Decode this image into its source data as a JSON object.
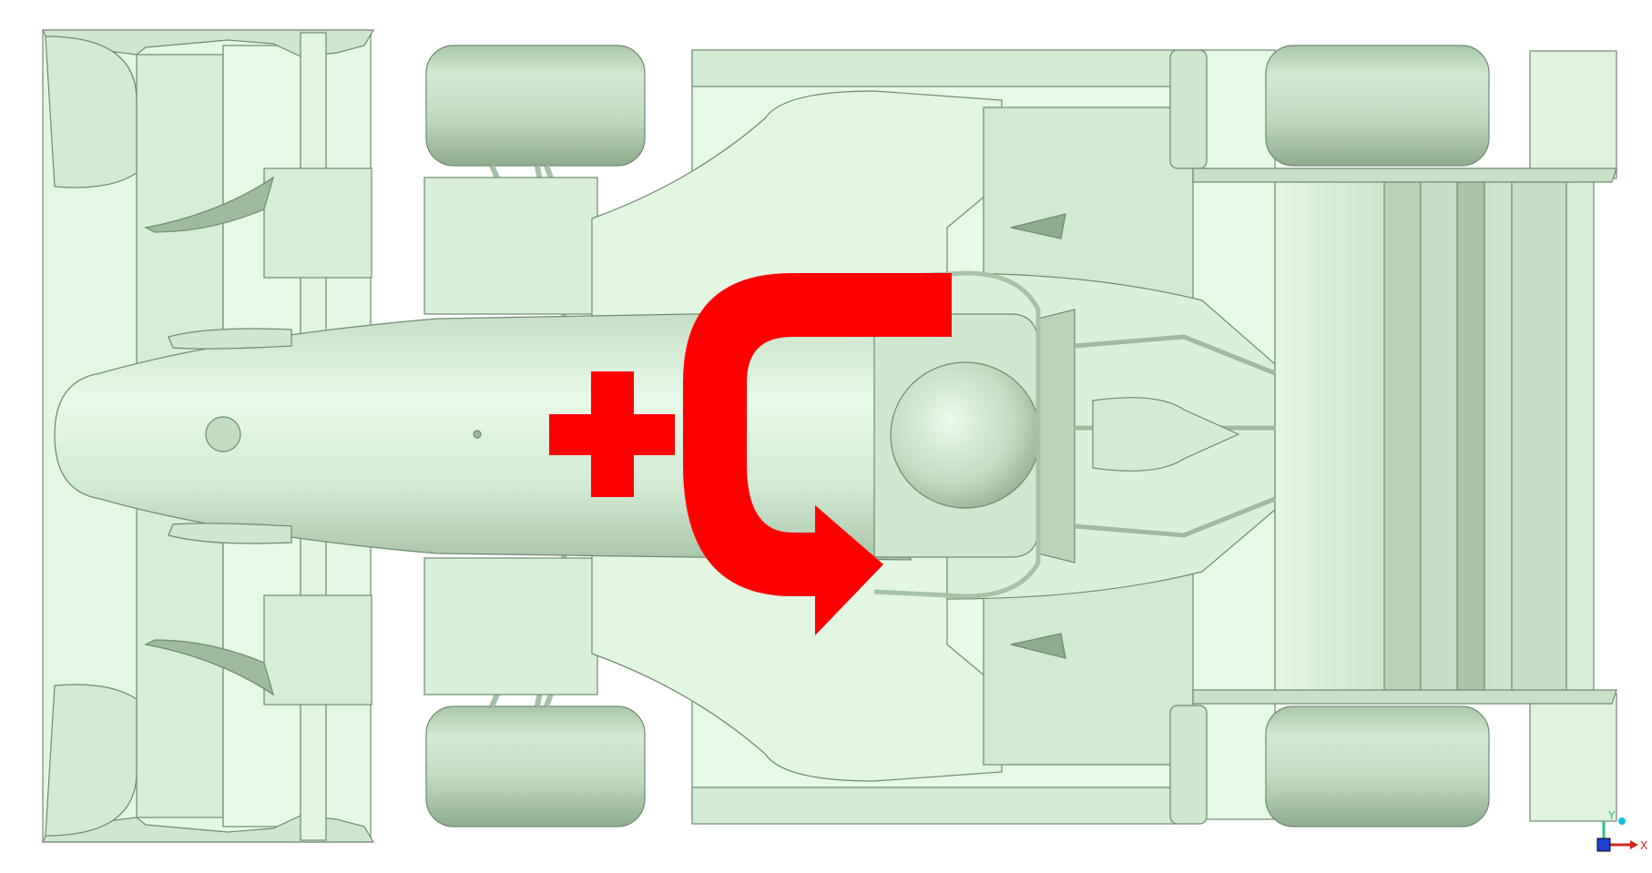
{
  "colors": {
    "body_fill": "#e4f7e4",
    "body_mid": "#cfe6cf",
    "body_shade": "#b3cdb3",
    "body_dark": "#7f9a7f",
    "edge": "#6f8a6f",
    "tire_fill": "#c2dcc2",
    "tire_dark": "#93b093",
    "annotation_red": "#ff0000",
    "axis_y": "#2ec27e",
    "axis_x": "#d6281f",
    "axis_z": "#1f3fd6",
    "axis_tip": "#18c0d8"
  },
  "annotations": {
    "plus_symbol": "plus-icon",
    "arrow_symbol": "curved-arrow-icon"
  },
  "triad": {
    "y_label": "Y",
    "x_label": "X"
  }
}
